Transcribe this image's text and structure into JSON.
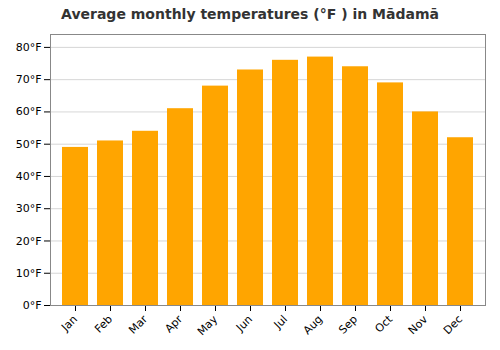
{
  "chart_data": {
    "type": "bar",
    "title": "Average monthly temperatures (°F ) in Mādamā",
    "categories": [
      "Jan",
      "Feb",
      "Mar",
      "Apr",
      "May",
      "Jun",
      "Jul",
      "Aug",
      "Sep",
      "Oct",
      "Nov",
      "Dec"
    ],
    "values": [
      49,
      51,
      54,
      61,
      68,
      73,
      76,
      77,
      74,
      69,
      60,
      52
    ],
    "color": "#FFA500",
    "ylim": [
      0,
      84
    ],
    "yticks": [
      {
        "value": 0,
        "label": "0°F"
      },
      {
        "value": 10,
        "label": "10°F"
      },
      {
        "value": 20,
        "label": "20°F"
      },
      {
        "value": 30,
        "label": "30°F"
      },
      {
        "value": 40,
        "label": "40°F"
      },
      {
        "value": 50,
        "label": "50°F"
      },
      {
        "value": 60,
        "label": "60°F"
      },
      {
        "value": 70,
        "label": "70°F"
      },
      {
        "value": 80,
        "label": "80°F"
      }
    ],
    "grid": true
  }
}
